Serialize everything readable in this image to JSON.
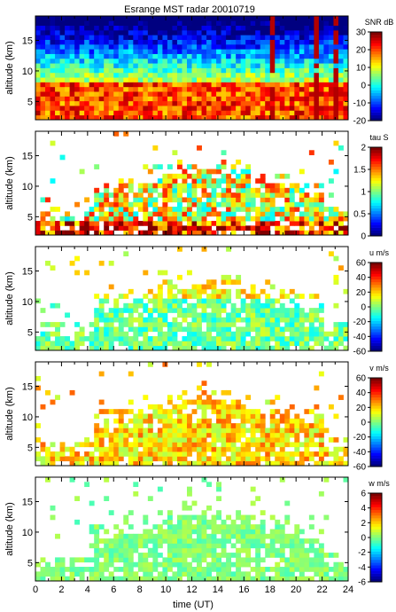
{
  "chart_data": {
    "type": "heatmap",
    "title": "Esrange MST radar 20010719",
    "xlabel": "time (UT)",
    "xlim": [
      0,
      24
    ],
    "xticks": [
      "0",
      "2",
      "4",
      "6",
      "8",
      "10",
      "12",
      "14",
      "16",
      "18",
      "20",
      "22",
      "24"
    ],
    "panels": [
      {
        "name": "snr",
        "ylabel": "altitude (km)",
        "yticks": [
          "5",
          "10",
          "15"
        ],
        "colorbar_label": "SNR dB",
        "clim": [
          -20,
          30
        ],
        "colorbar_ticks": [
          "-20",
          "-10",
          "0",
          "10",
          "20",
          "30"
        ]
      },
      {
        "name": "tau",
        "ylabel": "altitude (km)",
        "yticks": [
          "5",
          "10",
          "15"
        ],
        "colorbar_label": "tau S",
        "clim": [
          0,
          2
        ],
        "colorbar_ticks": [
          "0",
          "0.5",
          "1",
          "1.5",
          "2"
        ]
      },
      {
        "name": "u",
        "ylabel": "altitude (km)",
        "yticks": [
          "5",
          "10",
          "15"
        ],
        "colorbar_label": "u m/s",
        "clim": [
          -60,
          60
        ],
        "colorbar_ticks": [
          "-60",
          "-40",
          "-20",
          "0",
          "20",
          "40",
          "60"
        ]
      },
      {
        "name": "v",
        "ylabel": "altitude (km)",
        "yticks": [
          "5",
          "10",
          "15"
        ],
        "colorbar_label": "v m/s",
        "clim": [
          -60,
          60
        ],
        "colorbar_ticks": [
          "-60",
          "-40",
          "-20",
          "0",
          "20",
          "40",
          "60"
        ]
      },
      {
        "name": "w",
        "ylabel": "altitude (km)",
        "yticks": [
          "5",
          "10",
          "15"
        ],
        "colorbar_label": "w m/s",
        "clim": [
          -6,
          6
        ],
        "colorbar_ticks": [
          "-6",
          "-4",
          "-2",
          "0",
          "2",
          "4",
          "6"
        ]
      }
    ],
    "colormap": "jet"
  }
}
